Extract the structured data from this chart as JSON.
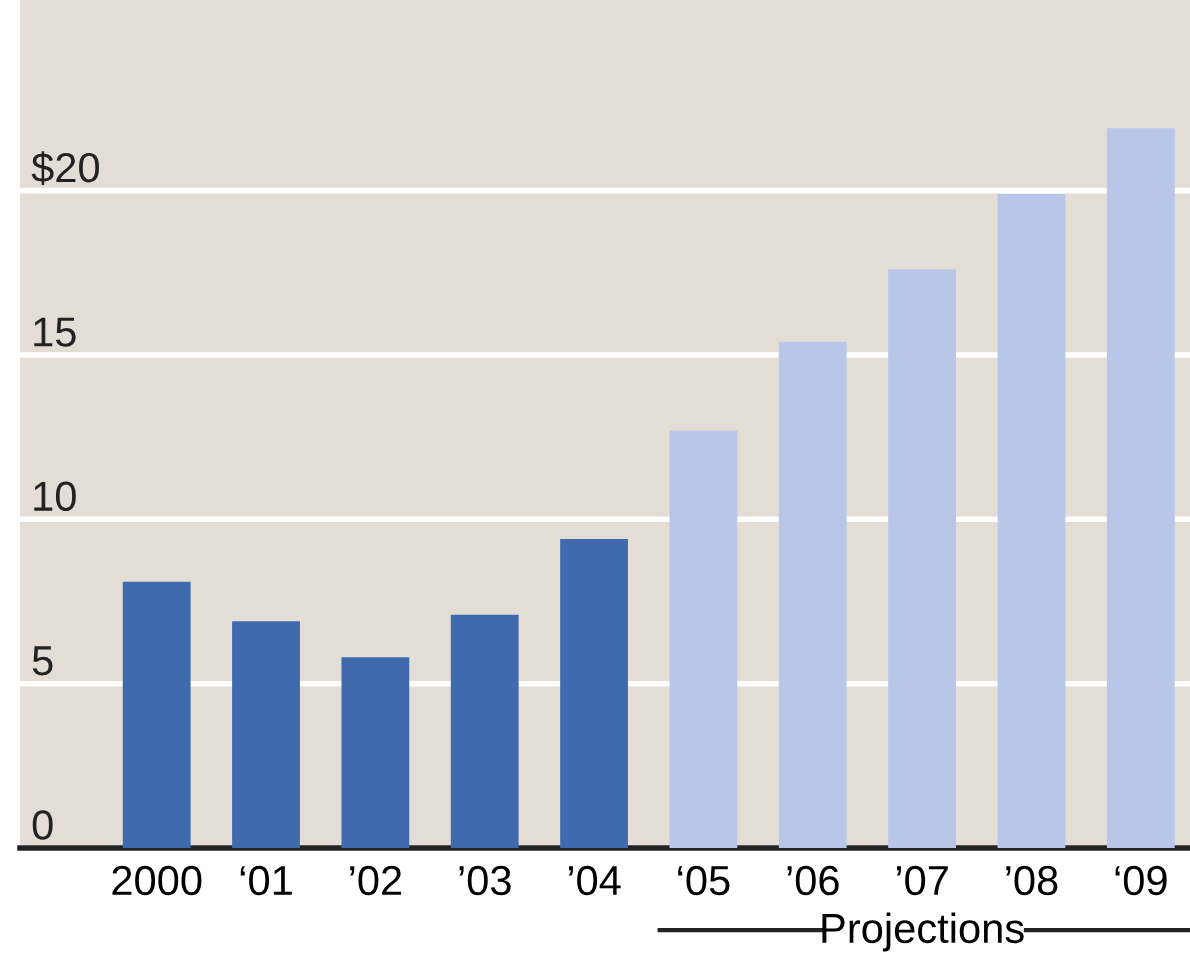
{
  "chart_data": {
    "type": "bar",
    "categories": [
      "2000",
      "‘01",
      "’02",
      "’03",
      "’04",
      "‘05",
      "’06",
      "’07",
      "’08",
      "‘09"
    ],
    "values": [
      8.1,
      6.9,
      5.8,
      7.1,
      9.4,
      12.7,
      15.4,
      17.6,
      19.9,
      21.9
    ],
    "colors": [
      "#3f6aad",
      "#3f6aad",
      "#3f6aad",
      "#3f6aad",
      "#3f6aad",
      "#b8c6e8",
      "#b8c6e8",
      "#b8c6e8",
      "#b8c6e8",
      "#b8c6e8"
    ],
    "ylim": [
      0,
      25.8
    ],
    "yticks": [
      0,
      5,
      10,
      15,
      {
        "value": 20,
        "label": "$20"
      }
    ],
    "grid": "y",
    "annotations": [
      "Projections"
    ]
  }
}
